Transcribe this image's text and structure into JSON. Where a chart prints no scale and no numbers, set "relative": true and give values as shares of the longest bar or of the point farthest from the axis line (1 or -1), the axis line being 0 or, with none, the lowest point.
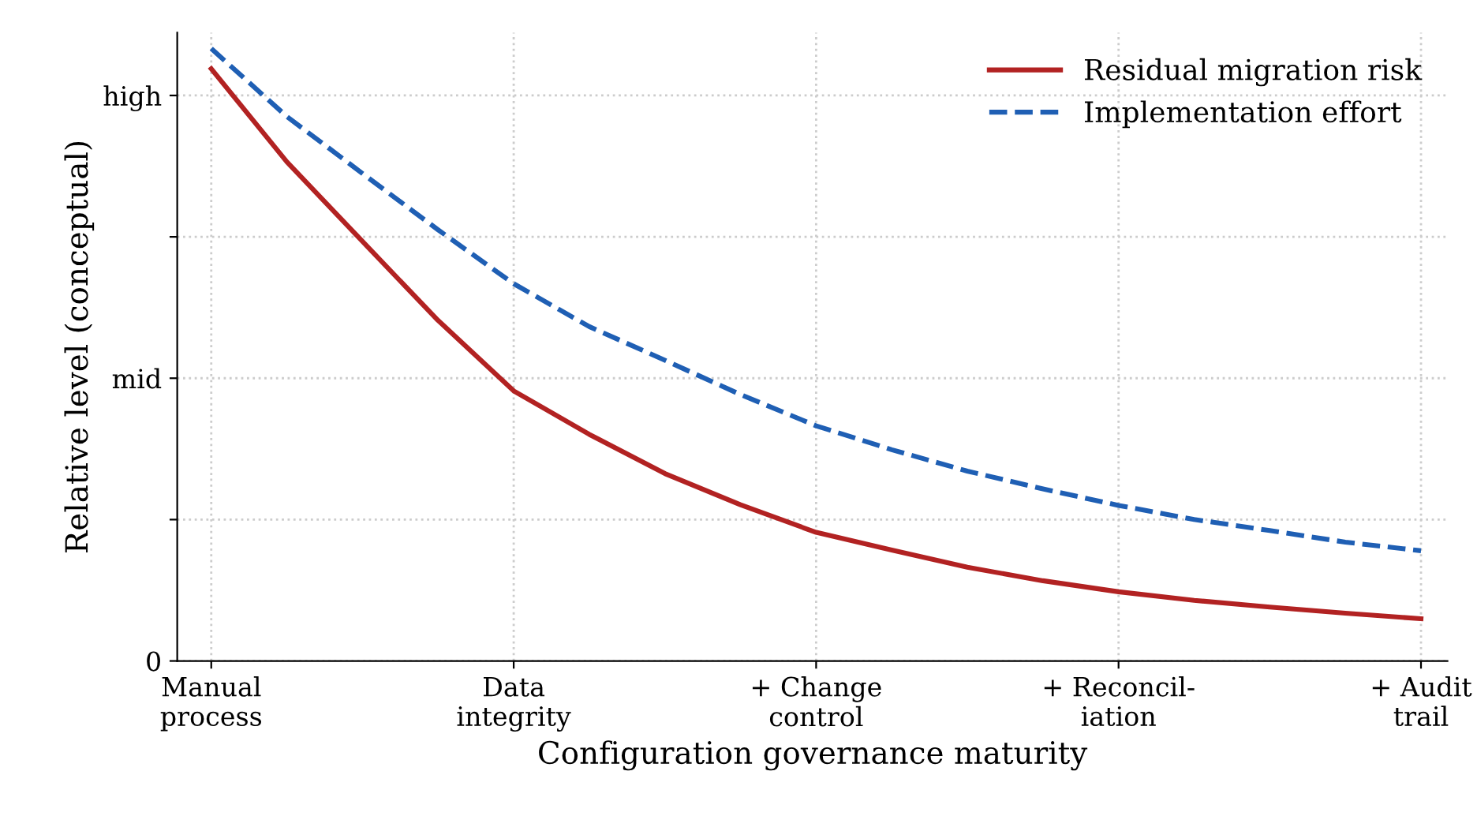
{
  "chart_data": {
    "type": "line",
    "xlabel": "Configuration governance maturity",
    "ylabel": "Relative level (conceptual)",
    "relative": true,
    "categories": [
      "Manual\nprocess",
      null,
      null,
      null,
      "Data\nintegrity",
      null,
      null,
      null,
      "+ Change\ncontrol",
      null,
      null,
      null,
      "+ Reconcil-\niation",
      null,
      null,
      null,
      "+ Audit\ntrail"
    ],
    "series": [
      {
        "name": "Residual migration risk",
        "color": "#b22222",
        "line_style": "solid",
        "values": [
          0.967,
          0.815,
          0.685,
          0.556,
          0.441,
          0.37,
          0.306,
          0.255,
          0.21,
          0.181,
          0.153,
          0.131,
          0.113,
          0.099,
          0.088,
          0.078,
          0.069
        ]
      },
      {
        "name": "Implementation effort",
        "color": "#1f5fb4",
        "line_style": "dashed",
        "values": [
          1,
          0.889,
          0.796,
          0.704,
          0.616,
          0.546,
          0.491,
          0.435,
          0.384,
          0.345,
          0.31,
          0.281,
          0.254,
          0.231,
          0.213,
          0.194,
          0.18
        ]
      }
    ],
    "annotations": [
      "0",
      "mid",
      "high"
    ],
    "grid": true,
    "legend": "top right",
    "marker": "none"
  }
}
